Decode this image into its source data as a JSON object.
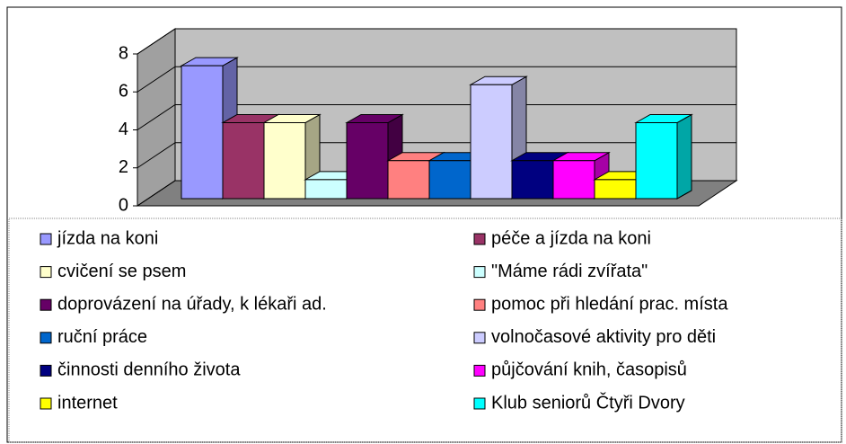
{
  "chart_data": {
    "type": "bar3d",
    "series": [
      {
        "name": "jízda na koni",
        "color": "#9999ff",
        "values": [
          7
        ]
      },
      {
        "name": "péče a jízda na koni",
        "color": "#993366",
        "values": [
          4
        ]
      },
      {
        "name": "cvičení se psem",
        "color": "#ffffcc",
        "values": [
          4
        ]
      },
      {
        "name": "\"Máme rádi zvířata\"",
        "color": "#ccffff",
        "values": [
          1
        ]
      },
      {
        "name": "doprovázení na úřady, k lékaři ad.",
        "color": "#660066",
        "values": [
          4
        ]
      },
      {
        "name": "pomoc při hledání prac. místa",
        "color": "#ff8080",
        "values": [
          2
        ]
      },
      {
        "name": "ruční práce",
        "color": "#0066cc",
        "values": [
          2
        ]
      },
      {
        "name": "volnočasové aktivity pro děti",
        "color": "#ccccff",
        "values": [
          6
        ]
      },
      {
        "name": "činnosti denního života",
        "color": "#000080",
        "values": [
          2
        ]
      },
      {
        "name": "půjčování knih, časopisů",
        "color": "#ff00ff",
        "values": [
          2
        ]
      },
      {
        "name": "internet",
        "color": "#ffff00",
        "values": [
          1
        ]
      },
      {
        "name": "Klub seniorů Čtyři Dvory",
        "color": "#00ffff",
        "values": [
          4
        ]
      }
    ],
    "ylim": [
      0,
      8
    ],
    "yticks": [
      0,
      2,
      4,
      6,
      8
    ],
    "grid": true,
    "legend": "bottom"
  }
}
